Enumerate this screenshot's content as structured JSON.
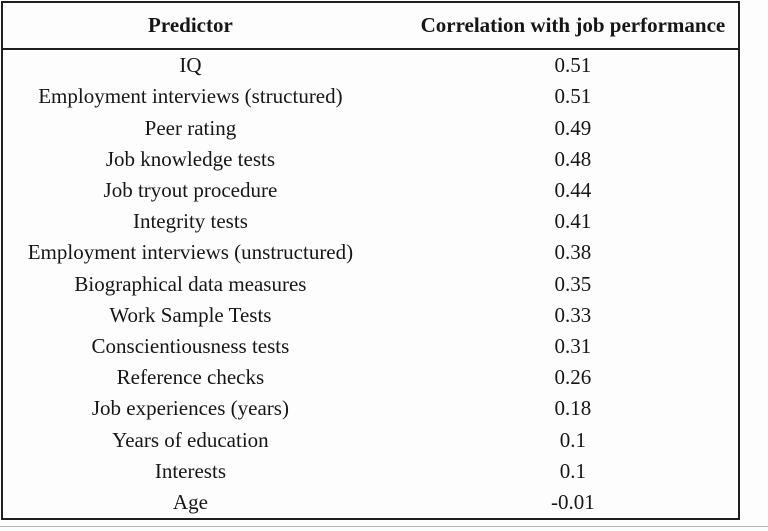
{
  "table": {
    "columns": [
      {
        "label": "Predictor"
      },
      {
        "label": "Correlation with job performance"
      }
    ],
    "rows": [
      {
        "predictor": "IQ",
        "correlation": "0.51"
      },
      {
        "predictor": "Employment interviews (structured)",
        "correlation": "0.51"
      },
      {
        "predictor": "Peer rating",
        "correlation": "0.49"
      },
      {
        "predictor": "Job knowledge tests",
        "correlation": "0.48"
      },
      {
        "predictor": "Job tryout procedure",
        "correlation": "0.44"
      },
      {
        "predictor": "Integrity tests",
        "correlation": "0.41"
      },
      {
        "predictor": "Employment interviews (unstructured)",
        "correlation": "0.38"
      },
      {
        "predictor": "Biographical data measures",
        "correlation": "0.35"
      },
      {
        "predictor": "Work Sample Tests",
        "correlation": "0.33"
      },
      {
        "predictor": "Conscientiousness tests",
        "correlation": "0.31"
      },
      {
        "predictor": "Reference checks",
        "correlation": "0.26"
      },
      {
        "predictor": "Job experiences (years)",
        "correlation": "0.18"
      },
      {
        "predictor": "Years of education",
        "correlation": "0.1"
      },
      {
        "predictor": "Interests",
        "correlation": "0.1"
      },
      {
        "predictor": "Age",
        "correlation": "-0.01"
      }
    ]
  },
  "colors": {
    "border": "#1f1f1f",
    "text": "#161616",
    "background": "#fdfdfd",
    "faint_line": "#b8b8b8"
  }
}
